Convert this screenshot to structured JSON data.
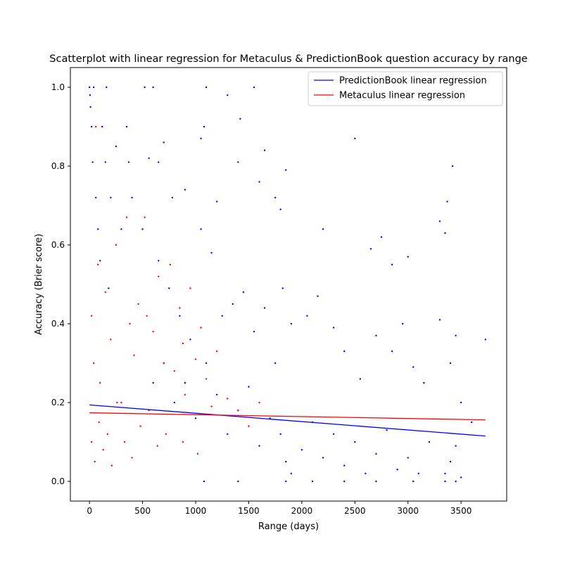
{
  "chart_data": {
    "type": "scatter",
    "title": "Scatterplot with linear regression for Metaculus & PredictionBook question accuracy by range",
    "xlabel": "Range (days)",
    "ylabel": "Accuracy (Brier score)",
    "xlim": [
      -180,
      3930
    ],
    "ylim": [
      -0.05,
      1.05
    ],
    "xticks": [
      0,
      500,
      1000,
      1500,
      2000,
      2500,
      3000,
      3500
    ],
    "yticks": [
      0.0,
      0.2,
      0.4,
      0.6,
      0.8,
      1.0
    ],
    "xtick_labels": [
      "0",
      "500",
      "1000",
      "1500",
      "2000",
      "2500",
      "3000",
      "3500"
    ],
    "ytick_labels": [
      "0.0",
      "0.2",
      "0.4",
      "0.6",
      "0.8",
      "1.0"
    ],
    "grid": false,
    "legend_position": "top-right",
    "series": [
      {
        "name": "PredictionBook",
        "kind": "scatter",
        "color": "#0000ff",
        "points": [
          [
            0,
            1.0
          ],
          [
            5,
            0.98
          ],
          [
            10,
            0.95
          ],
          [
            20,
            0.9
          ],
          [
            30,
            0.81
          ],
          [
            40,
            1.0
          ],
          [
            60,
            0.72
          ],
          [
            80,
            0.64
          ],
          [
            100,
            0.56
          ],
          [
            120,
            0.9
          ],
          [
            150,
            0.81
          ],
          [
            160,
            1.0
          ],
          [
            180,
            0.49
          ],
          [
            200,
            0.72
          ],
          [
            250,
            0.85
          ],
          [
            300,
            0.64
          ],
          [
            350,
            0.9
          ],
          [
            370,
            0.81
          ],
          [
            400,
            0.72
          ],
          [
            520,
            1.0
          ],
          [
            560,
            0.82
          ],
          [
            600,
            1.0
          ],
          [
            650,
            0.81
          ],
          [
            700,
            0.86
          ],
          [
            780,
            0.72
          ],
          [
            900,
            0.74
          ],
          [
            1050,
            0.87
          ],
          [
            1080,
            0.9
          ],
          [
            1100,
            1.0
          ],
          [
            1200,
            0.71
          ],
          [
            1300,
            0.98
          ],
          [
            1400,
            0.81
          ],
          [
            1420,
            0.92
          ],
          [
            1550,
            1.0
          ],
          [
            1600,
            0.76
          ],
          [
            1650,
            0.84
          ],
          [
            1750,
            0.72
          ],
          [
            1800,
            0.69
          ],
          [
            1850,
            0.79
          ],
          [
            2200,
            0.64
          ],
          [
            2500,
            0.87
          ],
          [
            2650,
            0.59
          ],
          [
            2750,
            0.62
          ],
          [
            2850,
            0.55
          ],
          [
            3000,
            0.57
          ],
          [
            3300,
            0.66
          ],
          [
            3350,
            0.63
          ],
          [
            3370,
            0.71
          ],
          [
            3420,
            0.8
          ],
          [
            3730,
            0.36
          ],
          [
            500,
            0.64
          ],
          [
            650,
            0.56
          ],
          [
            750,
            0.49
          ],
          [
            850,
            0.42
          ],
          [
            950,
            0.36
          ],
          [
            1050,
            0.64
          ],
          [
            1150,
            0.58
          ],
          [
            1250,
            0.42
          ],
          [
            1350,
            0.45
          ],
          [
            1450,
            0.48
          ],
          [
            1550,
            0.38
          ],
          [
            1650,
            0.44
          ],
          [
            1750,
            0.3
          ],
          [
            1820,
            0.49
          ],
          [
            1900,
            0.4
          ],
          [
            2050,
            0.42
          ],
          [
            2150,
            0.47
          ],
          [
            2300,
            0.39
          ],
          [
            2400,
            0.33
          ],
          [
            2550,
            0.26
          ],
          [
            2700,
            0.37
          ],
          [
            2850,
            0.33
          ],
          [
            2950,
            0.4
          ],
          [
            3050,
            0.29
          ],
          [
            3150,
            0.25
          ],
          [
            3300,
            0.41
          ],
          [
            3400,
            0.3
          ],
          [
            3450,
            0.37
          ],
          [
            3500,
            0.2
          ],
          [
            3600,
            0.15
          ],
          [
            600,
            0.25
          ],
          [
            700,
            0.3
          ],
          [
            800,
            0.2
          ],
          [
            900,
            0.25
          ],
          [
            1000,
            0.16
          ],
          [
            1100,
            0.3
          ],
          [
            1200,
            0.22
          ],
          [
            1300,
            0.12
          ],
          [
            1400,
            0.18
          ],
          [
            1500,
            0.24
          ],
          [
            1600,
            0.09
          ],
          [
            1700,
            0.16
          ],
          [
            1800,
            0.12
          ],
          [
            1850,
            0.05
          ],
          [
            1900,
            0.02
          ],
          [
            2000,
            0.08
          ],
          [
            2100,
            0.15
          ],
          [
            2200,
            0.06
          ],
          [
            2300,
            0.12
          ],
          [
            2400,
            0.04
          ],
          [
            2500,
            0.1
          ],
          [
            2600,
            0.02
          ],
          [
            2700,
            0.07
          ],
          [
            2800,
            0.13
          ],
          [
            2900,
            0.03
          ],
          [
            3000,
            0.06
          ],
          [
            3100,
            0.02
          ],
          [
            3200,
            0.1
          ],
          [
            3350,
            0.02
          ],
          [
            3400,
            0.05
          ],
          [
            3450,
            0.09
          ],
          [
            3500,
            0.01
          ],
          [
            1080,
            0.0
          ],
          [
            1400,
            0.0
          ],
          [
            1850,
            0.0
          ],
          [
            2100,
            0.0
          ],
          [
            2400,
            0.0
          ],
          [
            2700,
            0.0
          ],
          [
            3050,
            0.0
          ],
          [
            3350,
            0.0
          ],
          [
            3450,
            0.0
          ]
        ]
      },
      {
        "name": "Metaculus",
        "kind": "scatter",
        "color": "#ff0000",
        "points": [
          [
            20,
            0.42
          ],
          [
            40,
            0.3
          ],
          [
            60,
            0.9
          ],
          [
            80,
            0.55
          ],
          [
            100,
            0.25
          ],
          [
            150,
            0.48
          ],
          [
            200,
            0.36
          ],
          [
            250,
            0.6
          ],
          [
            300,
            0.2
          ],
          [
            350,
            0.67
          ],
          [
            380,
            0.4
          ],
          [
            420,
            0.32
          ],
          [
            460,
            0.45
          ],
          [
            520,
            0.67
          ],
          [
            540,
            0.42
          ],
          [
            600,
            0.38
          ],
          [
            650,
            0.52
          ],
          [
            700,
            0.3
          ],
          [
            760,
            0.55
          ],
          [
            800,
            0.28
          ],
          [
            850,
            0.44
          ],
          [
            880,
            0.35
          ],
          [
            900,
            0.22
          ],
          [
            950,
            0.49
          ],
          [
            1000,
            0.31
          ],
          [
            1050,
            0.39
          ],
          [
            1100,
            0.26
          ],
          [
            1150,
            0.19
          ],
          [
            1200,
            0.33
          ],
          [
            1300,
            0.21
          ],
          [
            1400,
            0.18
          ],
          [
            1500,
            0.14
          ],
          [
            1600,
            0.2
          ],
          [
            20,
            0.1
          ],
          [
            50,
            0.05
          ],
          [
            90,
            0.15
          ],
          [
            130,
            0.08
          ],
          [
            170,
            0.12
          ],
          [
            210,
            0.04
          ],
          [
            260,
            0.2
          ],
          [
            330,
            0.1
          ],
          [
            400,
            0.06
          ],
          [
            480,
            0.14
          ],
          [
            560,
            0.18
          ],
          [
            640,
            0.09
          ],
          [
            720,
            0.12
          ],
          [
            880,
            0.1
          ],
          [
            1020,
            0.07
          ]
        ]
      },
      {
        "name": "PredictionBook linear regression",
        "kind": "line",
        "color": "#0000ff",
        "points": [
          [
            0,
            0.194
          ],
          [
            3730,
            0.115
          ]
        ]
      },
      {
        "name": "Metaculus linear regression",
        "kind": "line",
        "color": "#ff0000",
        "points": [
          [
            0,
            0.174
          ],
          [
            3730,
            0.156
          ]
        ]
      }
    ],
    "legend": [
      {
        "label": "PredictionBook linear regression",
        "color": "#0000ff"
      },
      {
        "label": "Metaculus linear regression",
        "color": "#ff0000"
      }
    ]
  }
}
